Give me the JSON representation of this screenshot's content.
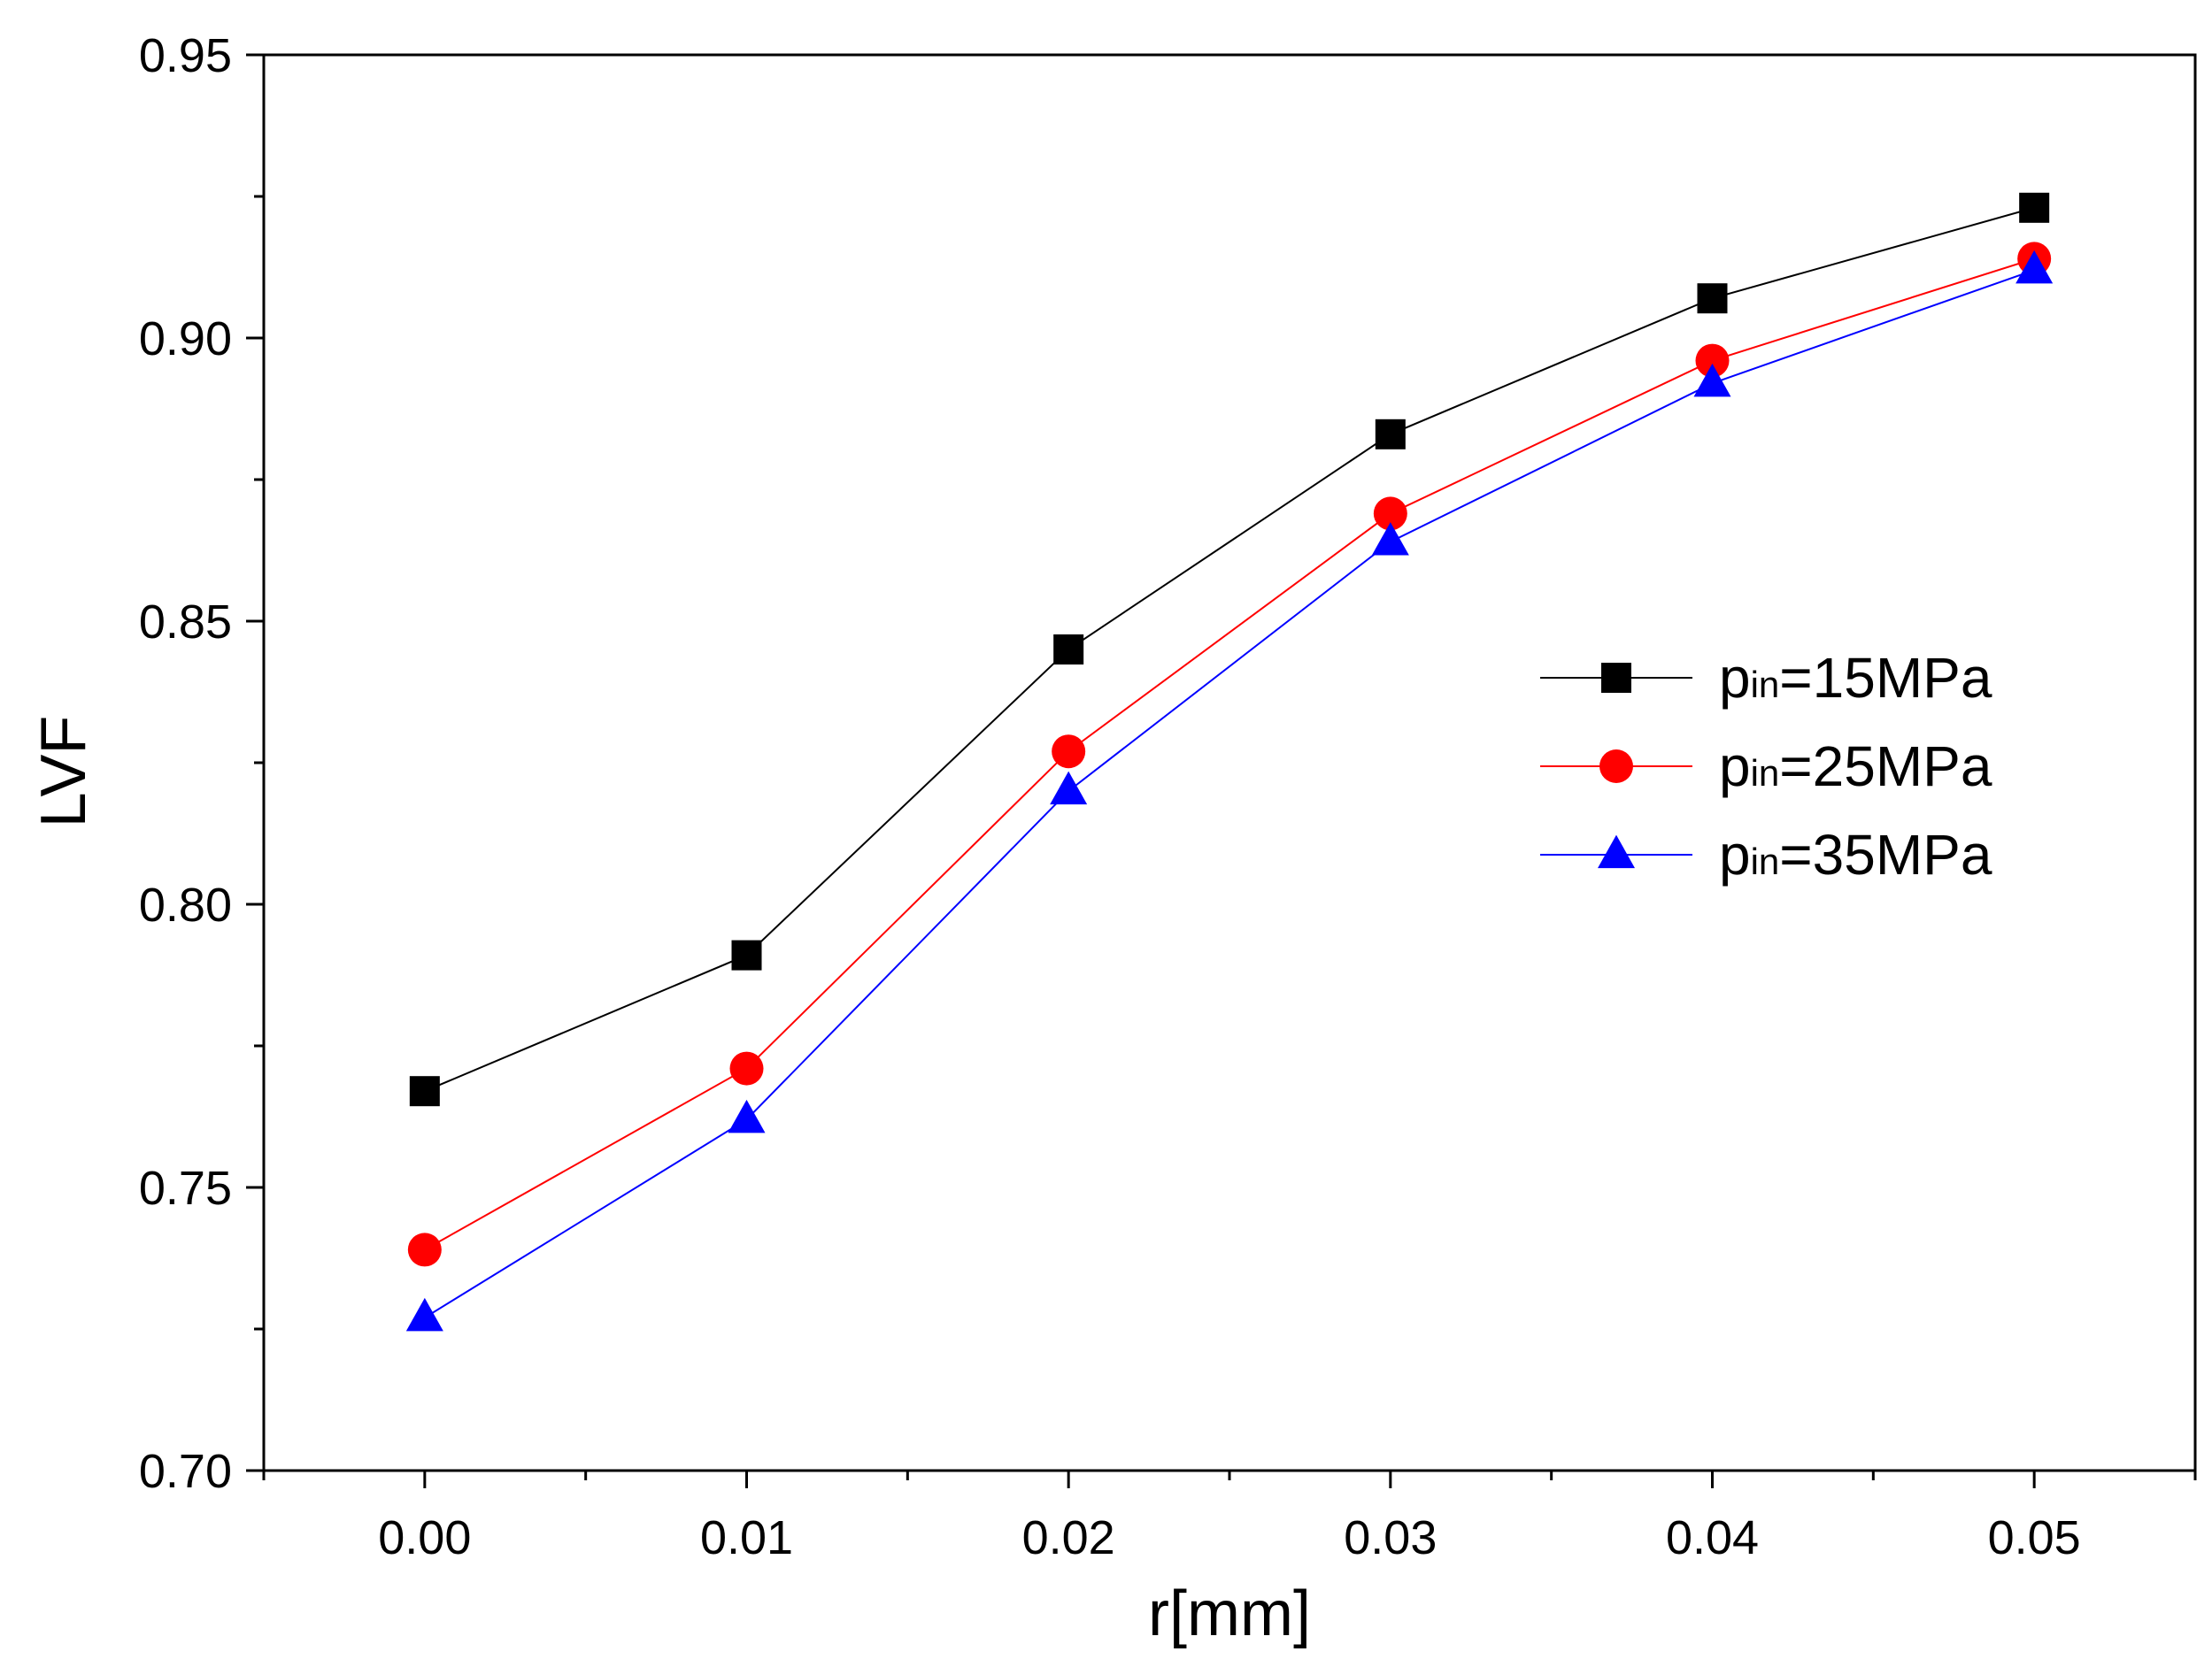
{
  "chart_data": {
    "type": "line",
    "title": "",
    "xlabel": "r[mm]",
    "ylabel": "LVF",
    "xlim": [
      -0.005,
      0.055
    ],
    "ylim": [
      0.7,
      0.95
    ],
    "grid": false,
    "x": [
      0.0,
      0.01,
      0.02,
      0.03,
      0.04,
      0.05
    ],
    "x_ticks": [
      0.0,
      0.01,
      0.02,
      0.03,
      0.04,
      0.05
    ],
    "x_tick_labels": [
      "0.00",
      "0.01",
      "0.02",
      "0.03",
      "0.04",
      "0.05"
    ],
    "x_minor_ticks": [
      -0.005,
      0.005,
      0.015,
      0.025,
      0.035,
      0.045,
      0.055
    ],
    "y_ticks": [
      0.7,
      0.75,
      0.8,
      0.85,
      0.9,
      0.95
    ],
    "y_tick_labels": [
      "0.70",
      "0.75",
      "0.80",
      "0.85",
      "0.90",
      "0.95"
    ],
    "y_minor_ticks": [
      0.725,
      0.775,
      0.825,
      0.875,
      0.925
    ],
    "legend_position": "right",
    "series": [
      {
        "name": "p_in=15MPa",
        "label_main": "p",
        "label_sub": "in",
        "label_rest": "=15MPa",
        "color": "#000000",
        "marker": "square",
        "values": [
          0.767,
          0.791,
          0.845,
          0.883,
          0.907,
          0.923
        ]
      },
      {
        "name": "p_in=25MPa",
        "label_main": "p",
        "label_sub": "in",
        "label_rest": "=25MPa",
        "color": "#ff0000",
        "marker": "circle",
        "values": [
          0.739,
          0.771,
          0.827,
          0.869,
          0.896,
          0.914
        ]
      },
      {
        "name": "p_in=35MPa",
        "label_main": "p",
        "label_sub": "in",
        "label_rest": "=35MPa",
        "color": "#0000ff",
        "marker": "triangle",
        "values": [
          0.727,
          0.762,
          0.82,
          0.864,
          0.892,
          0.912
        ]
      }
    ]
  }
}
